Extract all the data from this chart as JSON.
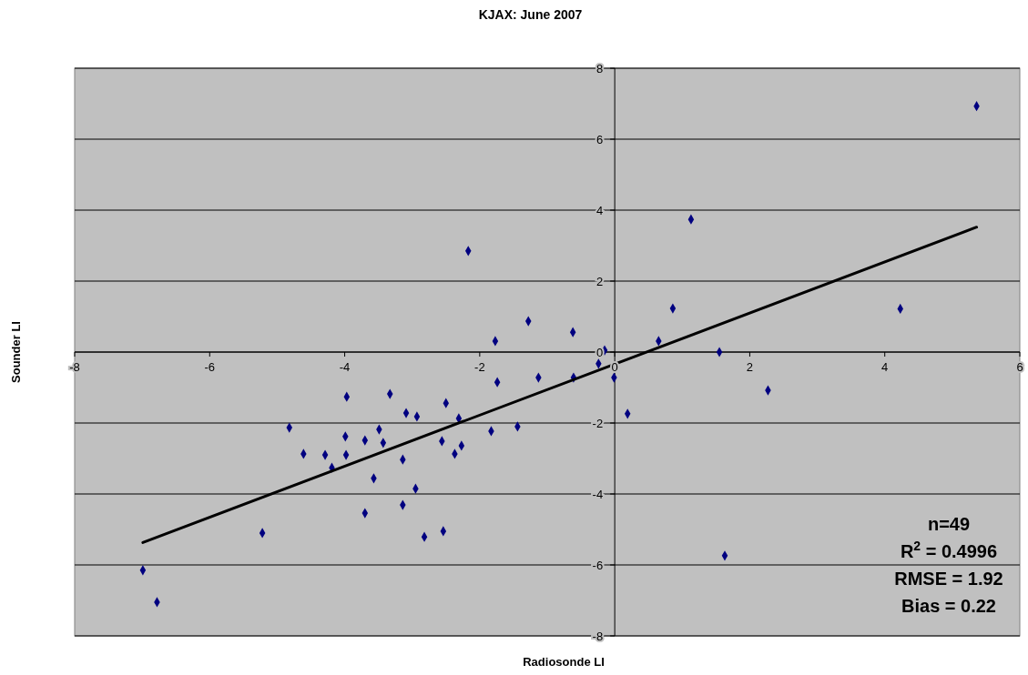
{
  "chart_data": {
    "type": "scatter",
    "title": "KJAX: June 2007",
    "xlabel": "Radiosonde LI",
    "ylabel": "Sounder LI",
    "xlim": [
      -8,
      6
    ],
    "ylim": [
      -8,
      8
    ],
    "xticks": [
      -8,
      -6,
      -4,
      -2,
      0,
      2,
      4,
      6
    ],
    "yticks": [
      -8,
      -6,
      -4,
      -2,
      0,
      2,
      4,
      6,
      8
    ],
    "grid": "y",
    "marker": "diamond",
    "annotations": [
      "n=49",
      "R$^{2}$ = 0.4996",
      "RMSE = 1.92",
      "Bias = 0.22"
    ],
    "series": [
      {
        "color": "#000080",
        "x": [
          -6.99,
          -6.78,
          -5.22,
          -4.82,
          -4.61,
          -4.29,
          -4.19,
          -3.99,
          -3.98,
          -3.97,
          -3.7,
          -3.7,
          -3.57,
          -3.49,
          -3.43,
          -3.33,
          -3.14,
          -3.14,
          -3.09,
          -2.95,
          -2.93,
          -2.82,
          -2.56,
          -2.54,
          -2.5,
          -2.37,
          -2.31,
          -2.27,
          -2.17,
          -1.83,
          -1.77,
          -1.74,
          -1.44,
          -1.28,
          -1.13,
          -0.62,
          -0.61,
          -0.24,
          -0.15,
          -0.01,
          0.19,
          0.65,
          0.86,
          1.13,
          1.55,
          1.63,
          2.27,
          4.23,
          5.36
        ],
        "values": [
          -6.15,
          -7.05,
          -5.1,
          -2.13,
          -2.87,
          -2.9,
          -3.26,
          -2.38,
          -2.9,
          -1.26,
          -4.54,
          -2.49,
          -3.56,
          -2.18,
          -2.56,
          -1.18,
          -4.31,
          -3.03,
          -1.72,
          -3.85,
          -1.82,
          -5.21,
          -2.51,
          -5.05,
          -1.44,
          -2.87,
          -1.87,
          -2.64,
          2.85,
          -2.23,
          0.31,
          -0.85,
          -2.1,
          0.87,
          -0.72,
          0.56,
          -0.72,
          -0.33,
          0.05,
          -0.72,
          -1.74,
          0.31,
          1.23,
          3.74,
          0,
          -5.74,
          -1.08,
          1.22,
          6.93
        ]
      },
      {
        "type": "line",
        "marker": "none",
        "color": "#000000",
        "x": [
          -6.99,
          5.36
        ],
        "values": [
          -5.37,
          3.52
        ]
      }
    ]
  }
}
